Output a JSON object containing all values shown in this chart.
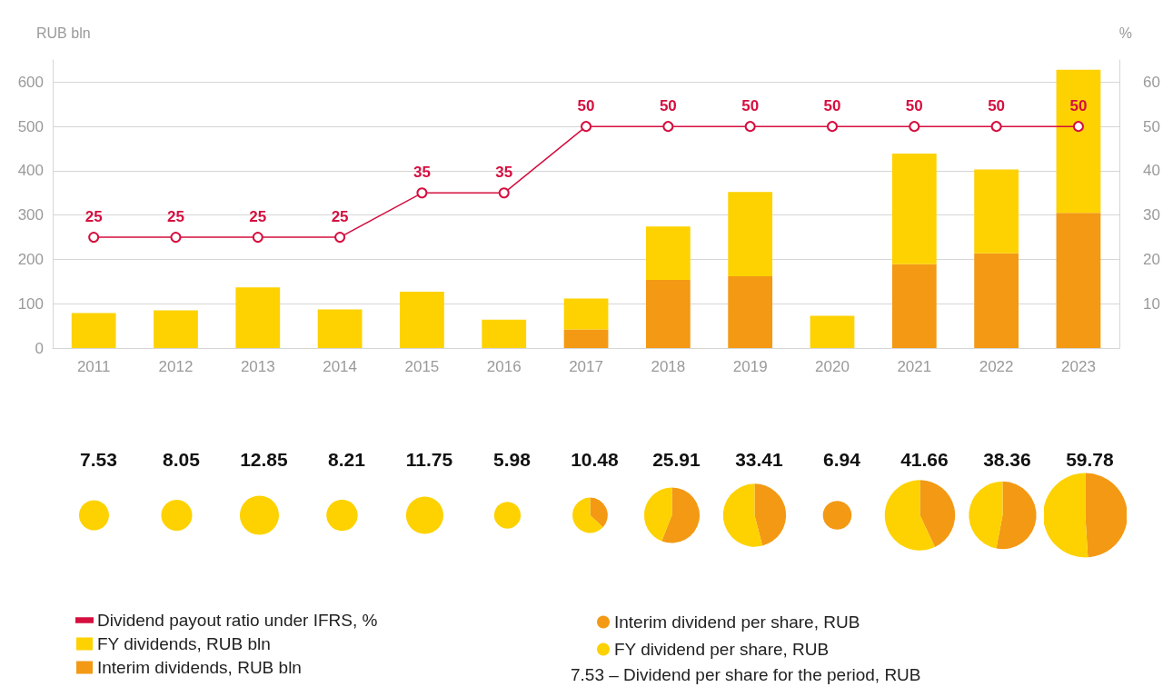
{
  "chart_data": [
    {
      "type": "bar",
      "stacked": true,
      "ylabel": "RUB bln",
      "y2label": "%",
      "categories": [
        "2011",
        "2012",
        "2013",
        "2014",
        "2015",
        "2016",
        "2017",
        "2018",
        "2019",
        "2020",
        "2021",
        "2022",
        "2023"
      ],
      "series": [
        {
          "name": "Dividend payout ratio under IFRS, %",
          "type": "line",
          "axis": "y2",
          "color": "#d50f3f",
          "values": [
            25,
            25,
            25,
            25,
            35,
            35,
            50,
            50,
            50,
            50,
            50,
            50,
            50
          ],
          "value_labels": [
            "25",
            "25",
            "25",
            "25",
            "35",
            "35",
            "50",
            "50",
            "50",
            "50",
            "50",
            "50",
            "50"
          ]
        },
        {
          "name": "Interim dividends, RUB bln",
          "color": "#f39914",
          "values": [
            0,
            0,
            0,
            0,
            0,
            0,
            42,
            154,
            162,
            0,
            189,
            214,
            305
          ]
        },
        {
          "name": "FY dividends, RUB bln",
          "color": "#fdd200",
          "values": [
            79,
            85,
            137,
            87,
            127,
            64,
            70,
            120,
            190,
            73,
            250,
            189,
            323
          ]
        }
      ],
      "ylim": [
        0,
        650
      ],
      "yticks": [
        0,
        100,
        200,
        300,
        400,
        500,
        600
      ],
      "y2lim": [
        0,
        65
      ],
      "y2ticks": [
        10,
        20,
        30,
        40,
        50,
        60
      ],
      "grid": "y",
      "legend": "bottom left",
      "marker": "circle",
      "line_style": "solid"
    },
    {
      "type": "pie",
      "title": "7.53",
      "categories": [
        "Interim dividend per share, RUB",
        "FY dividend per share, RUB"
      ],
      "values": [
        0,
        100
      ],
      "colors": [
        "#f39914",
        "#fdd200"
      ],
      "legend": "bottom right",
      "annotations": [
        "7.53 – Dividend per share for the period, RUB"
      ]
    },
    {
      "type": "pie",
      "title": "8.05",
      "categories": [
        null,
        null
      ],
      "values": [
        0,
        100
      ],
      "colors": [
        "#f39914",
        "#fdd200"
      ]
    },
    {
      "type": "pie",
      "title": "12.85",
      "categories": [
        null,
        null
      ],
      "values": [
        0,
        100
      ],
      "colors": [
        "#f39914",
        "#fdd200"
      ]
    },
    {
      "type": "pie",
      "title": "8.21",
      "categories": [
        null,
        null
      ],
      "values": [
        0,
        100
      ],
      "colors": [
        "#f39914",
        "#fdd200"
      ]
    },
    {
      "type": "pie",
      "title": "11.75",
      "categories": [
        null,
        null
      ],
      "values": [
        0,
        100
      ],
      "colors": [
        "#f39914",
        "#fdd200"
      ]
    },
    {
      "type": "pie",
      "title": "5.98",
      "categories": [
        null,
        null
      ],
      "values": [
        0,
        100
      ],
      "colors": [
        "#f39914",
        "#fdd200"
      ]
    },
    {
      "type": "pie",
      "title": "10.48",
      "categories": [
        null,
        null
      ],
      "values": [
        37,
        63
      ],
      "colors": [
        "#f39914",
        "#fdd200"
      ]
    },
    {
      "type": "pie",
      "title": "25.91",
      "categories": [
        null,
        null
      ],
      "values": [
        56,
        44
      ],
      "colors": [
        "#f39914",
        "#fdd200"
      ]
    },
    {
      "type": "pie",
      "title": "33.41",
      "categories": [
        null,
        null
      ],
      "values": [
        46,
        54
      ],
      "colors": [
        "#f39914",
        "#fdd200"
      ]
    },
    {
      "type": "pie",
      "title": "6.94",
      "categories": [
        null,
        null
      ],
      "values": [
        100,
        0
      ],
      "colors": [
        "#f39914",
        "#fdd200"
      ]
    },
    {
      "type": "pie",
      "title": "41.66",
      "categories": [
        null,
        null
      ],
      "values": [
        43,
        57
      ],
      "colors": [
        "#f39914",
        "#fdd200"
      ]
    },
    {
      "type": "pie",
      "title": "38.36",
      "categories": [
        null,
        null
      ],
      "values": [
        53,
        47
      ],
      "colors": [
        "#f39914",
        "#fdd200"
      ]
    },
    {
      "type": "pie",
      "title": "59.78",
      "categories": [
        null,
        null
      ],
      "values": [
        49,
        51
      ],
      "colors": [
        "#f39914",
        "#fdd200"
      ]
    }
  ]
}
